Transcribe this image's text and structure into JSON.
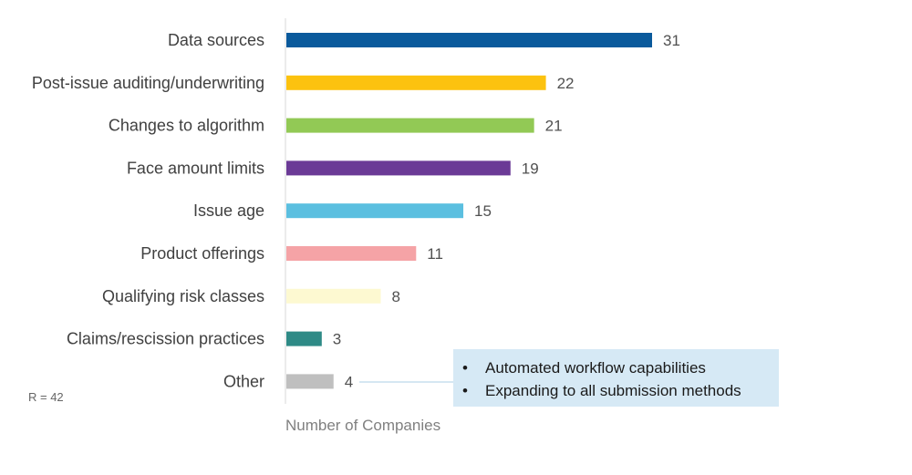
{
  "chart_data": {
    "type": "bar",
    "orientation": "horizontal",
    "categories": [
      "Data sources",
      "Post-issue auditing/underwriting",
      "Changes to algorithm",
      "Face amount limits",
      "Issue age",
      "Product offerings",
      "Qualifying risk classes",
      "Claims/rescission practices",
      "Other"
    ],
    "values": [
      31,
      22,
      21,
      19,
      15,
      11,
      8,
      3,
      4
    ],
    "colors": [
      "#0a5a9c",
      "#fcc20f",
      "#92c955",
      "#6b3a96",
      "#5bbfe0",
      "#f5a3a6",
      "#fdf9d1",
      "#2e8a86",
      "#bfbfbf"
    ],
    "title": "",
    "xlabel": "Number of Companies",
    "ylabel": "",
    "xlim": [
      0,
      35
    ],
    "grid": false,
    "legend": "none",
    "data_labels": true
  },
  "note": "R = 42",
  "callout": {
    "bullet_symbol": "•",
    "items": [
      "Automated workflow capabilities",
      "Expanding to all submission methods"
    ],
    "background": "#d6e9f5",
    "connector_color": "#d6e9f5"
  }
}
